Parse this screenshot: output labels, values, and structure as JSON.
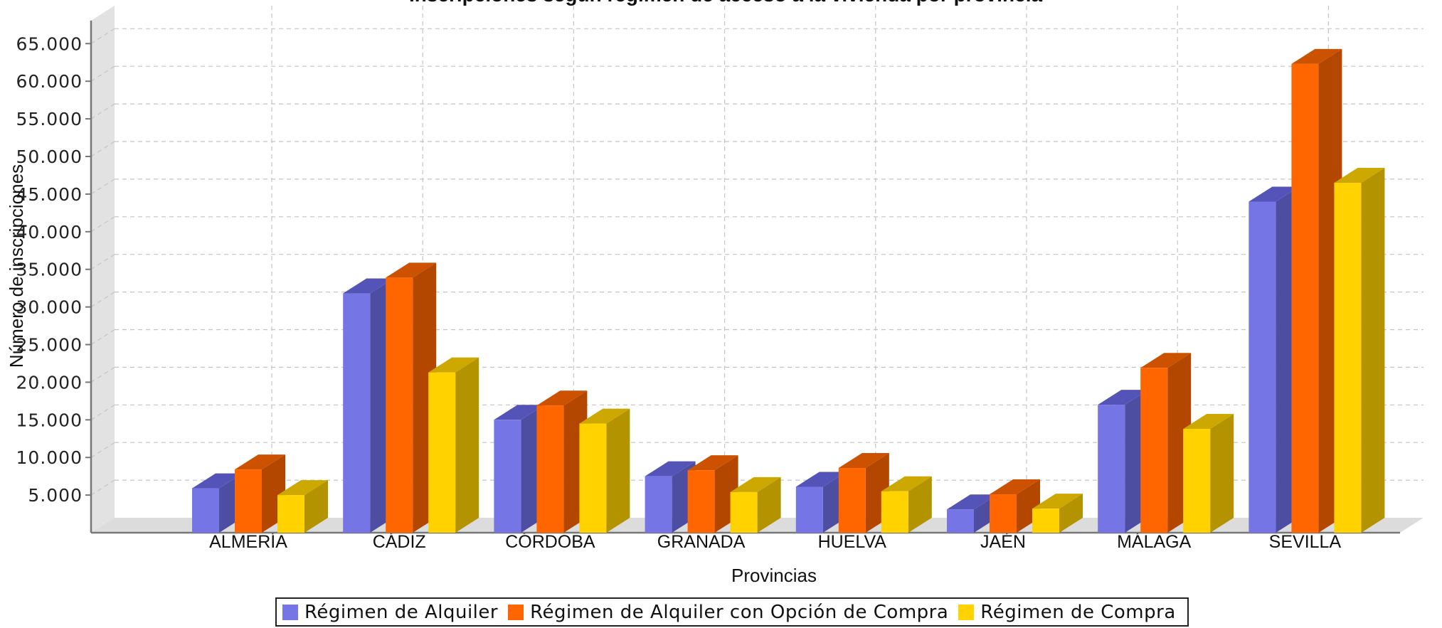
{
  "chart_data": {
    "type": "bar",
    "style": "3d-grouped",
    "title": "Inscripciones según régimen de acceso a la vivienda por provincia",
    "xlabel": "Provincias",
    "ylabel": "Número de inscripciones",
    "ylim": [
      0,
      65000
    ],
    "ytick_step": 5000,
    "ytick_labels": [
      "5.000",
      "10.000",
      "15.000",
      "20.000",
      "25.000",
      "30.000",
      "35.000",
      "40.000",
      "45.000",
      "50.000",
      "55.000",
      "60.000",
      "65.000"
    ],
    "grid": true,
    "legend_position": "bottom",
    "categories": [
      "ALMERÍA",
      "CÁDIZ",
      "CÓRDOBA",
      "GRANADA",
      "HUELVA",
      "JAÉN",
      "MÁLAGA",
      "SEVILLA"
    ],
    "series": [
      {
        "name": "Régimen de Alquiler",
        "color": "#7575E6",
        "side_color": "#4D4DA1",
        "top_color": "#5454B8",
        "values": [
          5900,
          31800,
          15000,
          7500,
          6100,
          3100,
          17000,
          44000
        ]
      },
      {
        "name": "Régimen de Alquiler con Opción de Compra",
        "color": "#FF6600",
        "side_color": "#B34700",
        "top_color": "#CC5200",
        "values": [
          8400,
          33900,
          16900,
          8300,
          8600,
          5100,
          21900,
          62300
        ]
      },
      {
        "name": "Régimen de Compra",
        "color": "#FFD200",
        "side_color": "#B39300",
        "top_color": "#CCA800",
        "values": [
          5000,
          21300,
          14500,
          5400,
          5500,
          3200,
          13800,
          46500
        ]
      }
    ]
  }
}
